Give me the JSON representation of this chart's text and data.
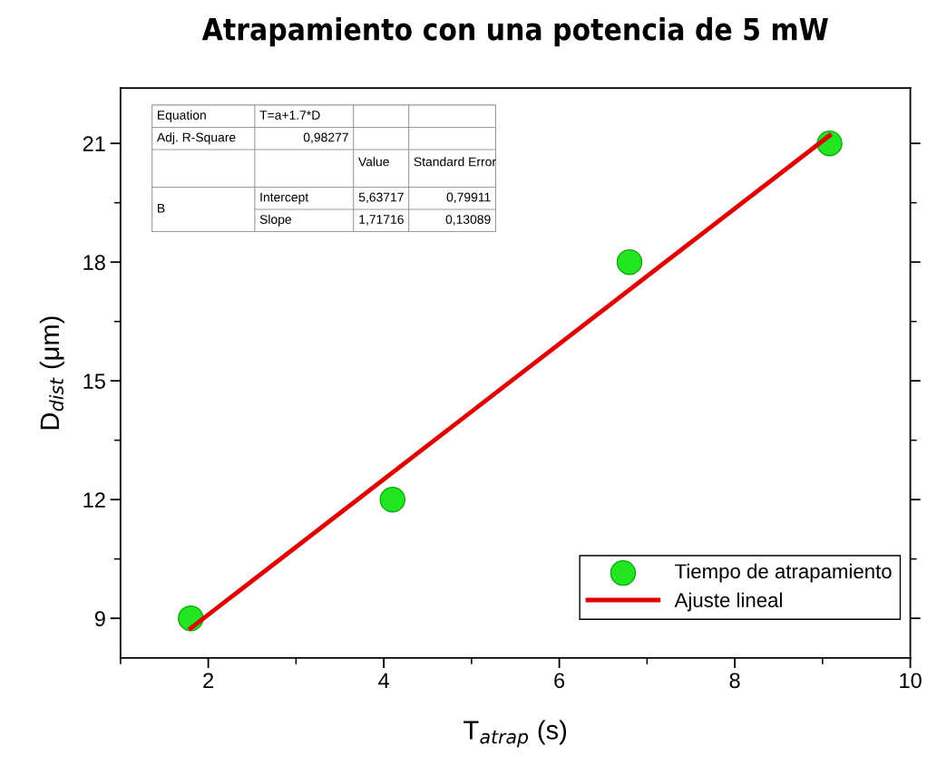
{
  "chart_data": {
    "type": "scatter",
    "title": "Atrapamiento con una potencia de 5 mW",
    "xlabel": "T$_{atrap}$ (s)",
    "ylabel": "D$_{dist}$ (μm)",
    "xlim": [
      1,
      10
    ],
    "xticks": [
      2,
      4,
      6,
      8,
      10
    ],
    "ylim": [
      8,
      22.4
    ],
    "yticks": [
      9,
      12,
      15,
      18,
      21
    ],
    "grid": false,
    "legend": "bottom right",
    "series": [
      {
        "name": "Tiempo de atrapamiento",
        "color": "#22e622",
        "marker": "circle",
        "x": [
          1.8,
          4.1,
          6.8,
          9.08
        ],
        "values": [
          9,
          12,
          18,
          21
        ]
      },
      {
        "name": "Ajuste lineal",
        "type": "line",
        "color": "#e00000",
        "marker": "none",
        "line_style": "solid",
        "x": [
          1.8,
          9.08
        ],
        "values": [
          8.75,
          21.2
        ]
      }
    ],
    "annotations": [
      "Equation",
      "T=a+1.7*D",
      "Adj. R-Square",
      "0,98277",
      "Value",
      "Standard Error",
      "B",
      "Intercept",
      "5,63717",
      "0,79911",
      "Slope",
      "1,71716",
      "0,13089"
    ]
  }
}
